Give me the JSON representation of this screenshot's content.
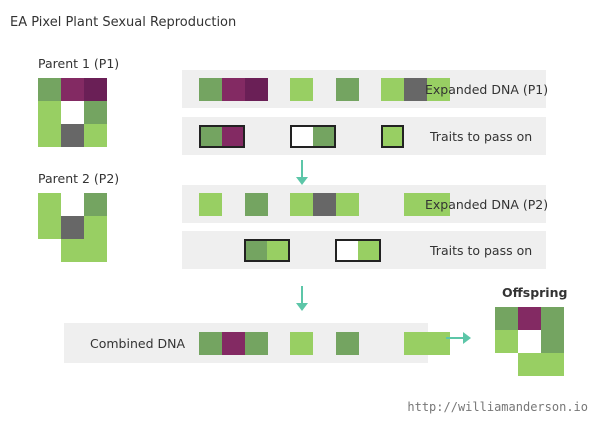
{
  "title": "EA Pixel Plant Sexual Reproduction",
  "colors": {
    "dark_green": "#74a461",
    "light_green": "#98cf63",
    "purple": "#832a63",
    "dark_purple": "#6a1f56",
    "gray": "#676767",
    "white": "#ffffff",
    "strip_bg": "#efefef",
    "arrow": "#5cc6a8"
  },
  "parent1": {
    "label": "Parent 1 (P1)",
    "grid": [
      [
        "dark_green",
        "purple",
        "dark_purple"
      ],
      [
        "light_green",
        "white",
        "dark_green"
      ],
      [
        "light_green",
        "gray",
        "light_green"
      ]
    ]
  },
  "parent2": {
    "label": "Parent 2 (P2)",
    "grid": [
      [
        "light_green",
        "white",
        "dark_green"
      ],
      [
        "light_green",
        "gray",
        "light_green"
      ],
      [
        "white",
        "light_green",
        "light_green"
      ]
    ]
  },
  "rows": {
    "expanded_p1": {
      "label": "Expanded DNA (P1)",
      "cells": [
        "dark_green",
        "purple",
        "dark_purple",
        "light_green",
        "empty",
        "dark_green",
        "light_green",
        "gray",
        "light_green"
      ]
    },
    "traits_p1": {
      "label": "Traits to pass on",
      "cells": [
        "dark_green",
        "purple",
        "empty",
        "white",
        "dark_green",
        "empty",
        "empty",
        "light_green"
      ]
    },
    "expanded_p2": {
      "label": "Expanded DNA (P2)",
      "cells": [
        "light_green",
        "empty",
        "dark_green",
        "light_green",
        "gray",
        "light_green",
        "empty",
        "light_green",
        "light_green"
      ]
    },
    "traits_p2": {
      "label": "Traits to pass on",
      "cells": [
        "dark_green",
        "light_green",
        "white",
        "light_green"
      ]
    },
    "combined": {
      "label": "Combined DNA",
      "cells": [
        "dark_green",
        "purple",
        "dark_green",
        "light_green",
        "empty",
        "dark_green",
        "empty",
        "light_green",
        "light_green"
      ]
    }
  },
  "offspring": {
    "label": "Offspring",
    "grid": [
      [
        "dark_green",
        "purple",
        "dark_green"
      ],
      [
        "light_green",
        "white",
        "dark_green"
      ],
      [
        "white",
        "light_green",
        "light_green"
      ]
    ]
  },
  "footer": "http://williamanderson.io"
}
